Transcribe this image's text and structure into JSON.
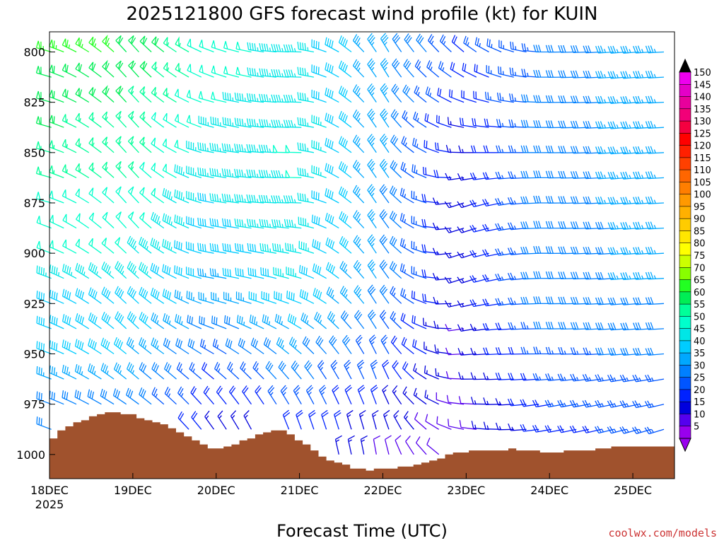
{
  "chart_data": {
    "type": "wind-barb-profile",
    "title": "2025121800 GFS forecast wind profile (kt) for KUIN",
    "xlabel": "Forecast Time (UTC)",
    "credit": "coolwx.com/models",
    "x_ticks": [
      "18DEC",
      "19DEC",
      "20DEC",
      "21DEC",
      "22DEC",
      "23DEC",
      "24DEC",
      "25DEC"
    ],
    "x_year": "2025",
    "x_range_days": [
      0,
      7.5
    ],
    "y_ticks": [
      "800",
      "825",
      "850",
      "875",
      "900",
      "925",
      "950",
      "975",
      "1000"
    ],
    "y_range_hpa": [
      790,
      1012
    ],
    "barb_levels_hpa": [
      800,
      812.5,
      825,
      837.5,
      850,
      862.5,
      875,
      887.5,
      900,
      912.5,
      925,
      937.5,
      950,
      962.5,
      975,
      987.5,
      1000
    ],
    "colorbar": {
      "labels": [
        "150",
        "145",
        "140",
        "135",
        "130",
        "125",
        "120",
        "115",
        "110",
        "105",
        "100",
        "95",
        "90",
        "85",
        "80",
        "75",
        "70",
        "65",
        "60",
        "55",
        "50",
        "45",
        "40",
        "35",
        "30",
        "25",
        "20",
        "15",
        "10",
        "5"
      ],
      "colors": [
        "#ee00ee",
        "#e400c8",
        "#e8009c",
        "#f20078",
        "#f40040",
        "#ff0000",
        "#ff2000",
        "#ff4000",
        "#ff6600",
        "#ff7e00",
        "#ff9900",
        "#ffb000",
        "#ffcc00",
        "#ffe600",
        "#ffff00",
        "#ccff00",
        "#88ff00",
        "#22ff22",
        "#00ee55",
        "#00ff99",
        "#00ffcc",
        "#00e6e6",
        "#00ccff",
        "#00a8ff",
        "#0080ff",
        "#0055ff",
        "#0022ff",
        "#0000dd",
        "#5500ee",
        "#9900ee"
      ]
    },
    "surface_pressure_hpa": [
      992,
      988,
      986,
      984,
      983,
      981,
      980,
      979,
      979,
      980,
      980,
      982,
      983,
      984,
      985,
      987,
      989,
      991,
      993,
      995,
      997,
      997,
      996,
      995,
      993,
      992,
      990,
      989,
      988,
      988,
      990,
      993,
      995,
      998,
      1001,
      1003,
      1004,
      1005,
      1007,
      1007,
      1008,
      1007,
      1007,
      1007,
      1006,
      1006,
      1005,
      1004,
      1003,
      1002,
      1000,
      999,
      999,
      998,
      998,
      998,
      998,
      998,
      997,
      998,
      998,
      998,
      999,
      999,
      999,
      998,
      998,
      998,
      998,
      997,
      997,
      996,
      996,
      996,
      996,
      996,
      996,
      996,
      996
    ],
    "wind_speed_by_day_kt": [
      [
        65,
        62,
        60,
        58,
        56,
        55,
        52,
        50,
        48,
        45,
        42,
        40,
        38,
        35,
        32,
        30,
        28
      ],
      [
        62,
        60,
        58,
        56,
        55,
        54,
        52,
        50,
        48,
        45,
        42,
        40,
        38,
        35,
        32,
        30,
        28
      ],
      [
        50,
        50,
        48,
        46,
        45,
        44,
        42,
        40,
        38,
        36,
        34,
        30,
        26,
        22,
        18,
        15,
        12
      ],
      [
        45,
        45,
        46,
        47,
        48,
        48,
        47,
        46,
        45,
        44,
        42,
        38,
        34,
        30,
        25,
        20,
        15
      ],
      [
        35,
        35,
        34,
        34,
        34,
        34,
        33,
        33,
        33,
        32,
        30,
        28,
        25,
        22,
        18,
        15,
        12
      ],
      [
        22,
        20,
        18,
        16,
        15,
        15,
        14,
        14,
        14,
        14,
        13,
        12,
        12,
        11,
        10,
        10,
        10
      ],
      [
        28,
        28,
        30,
        30,
        30,
        30,
        30,
        30,
        30,
        30,
        30,
        28,
        26,
        24,
        22,
        20,
        18
      ],
      [
        34,
        34,
        34,
        34,
        34,
        34,
        34,
        33,
        33,
        33,
        32,
        30,
        28,
        26,
        25,
        24,
        22
      ],
      [
        38,
        38,
        36,
        35,
        35,
        35,
        34,
        34,
        34,
        33,
        32,
        30,
        28,
        26,
        24,
        22,
        20
      ]
    ],
    "wind_dir_by_day_deg": [
      [
        285,
        285,
        285,
        285,
        285,
        285,
        285,
        290,
        290,
        290,
        290,
        290,
        290,
        290,
        290,
        290,
        290
      ],
      [
        320,
        320,
        320,
        320,
        320,
        320,
        320,
        320,
        315,
        315,
        315,
        315,
        310,
        310,
        305,
        300,
        300
      ],
      [
        290,
        290,
        285,
        285,
        280,
        280,
        280,
        280,
        280,
        280,
        285,
        290,
        300,
        310,
        320,
        325,
        330
      ],
      [
        270,
        270,
        270,
        270,
        270,
        270,
        270,
        275,
        280,
        285,
        290,
        300,
        310,
        320,
        330,
        340,
        345
      ],
      [
        330,
        330,
        330,
        330,
        330,
        330,
        330,
        330,
        330,
        330,
        330,
        330,
        335,
        340,
        340,
        345,
        350
      ],
      [
        310,
        300,
        290,
        280,
        270,
        260,
        250,
        250,
        250,
        250,
        255,
        260,
        265,
        270,
        275,
        280,
        290
      ],
      [
        270,
        270,
        270,
        270,
        270,
        270,
        270,
        270,
        270,
        270,
        270,
        270,
        270,
        265,
        260,
        260,
        260
      ],
      [
        265,
        265,
        265,
        265,
        265,
        265,
        265,
        265,
        265,
        265,
        265,
        265,
        265,
        260,
        258,
        255,
        250
      ],
      [
        270,
        270,
        270,
        270,
        270,
        270,
        270,
        270,
        270,
        270,
        270,
        270,
        265,
        260,
        255,
        250,
        250
      ]
    ]
  }
}
